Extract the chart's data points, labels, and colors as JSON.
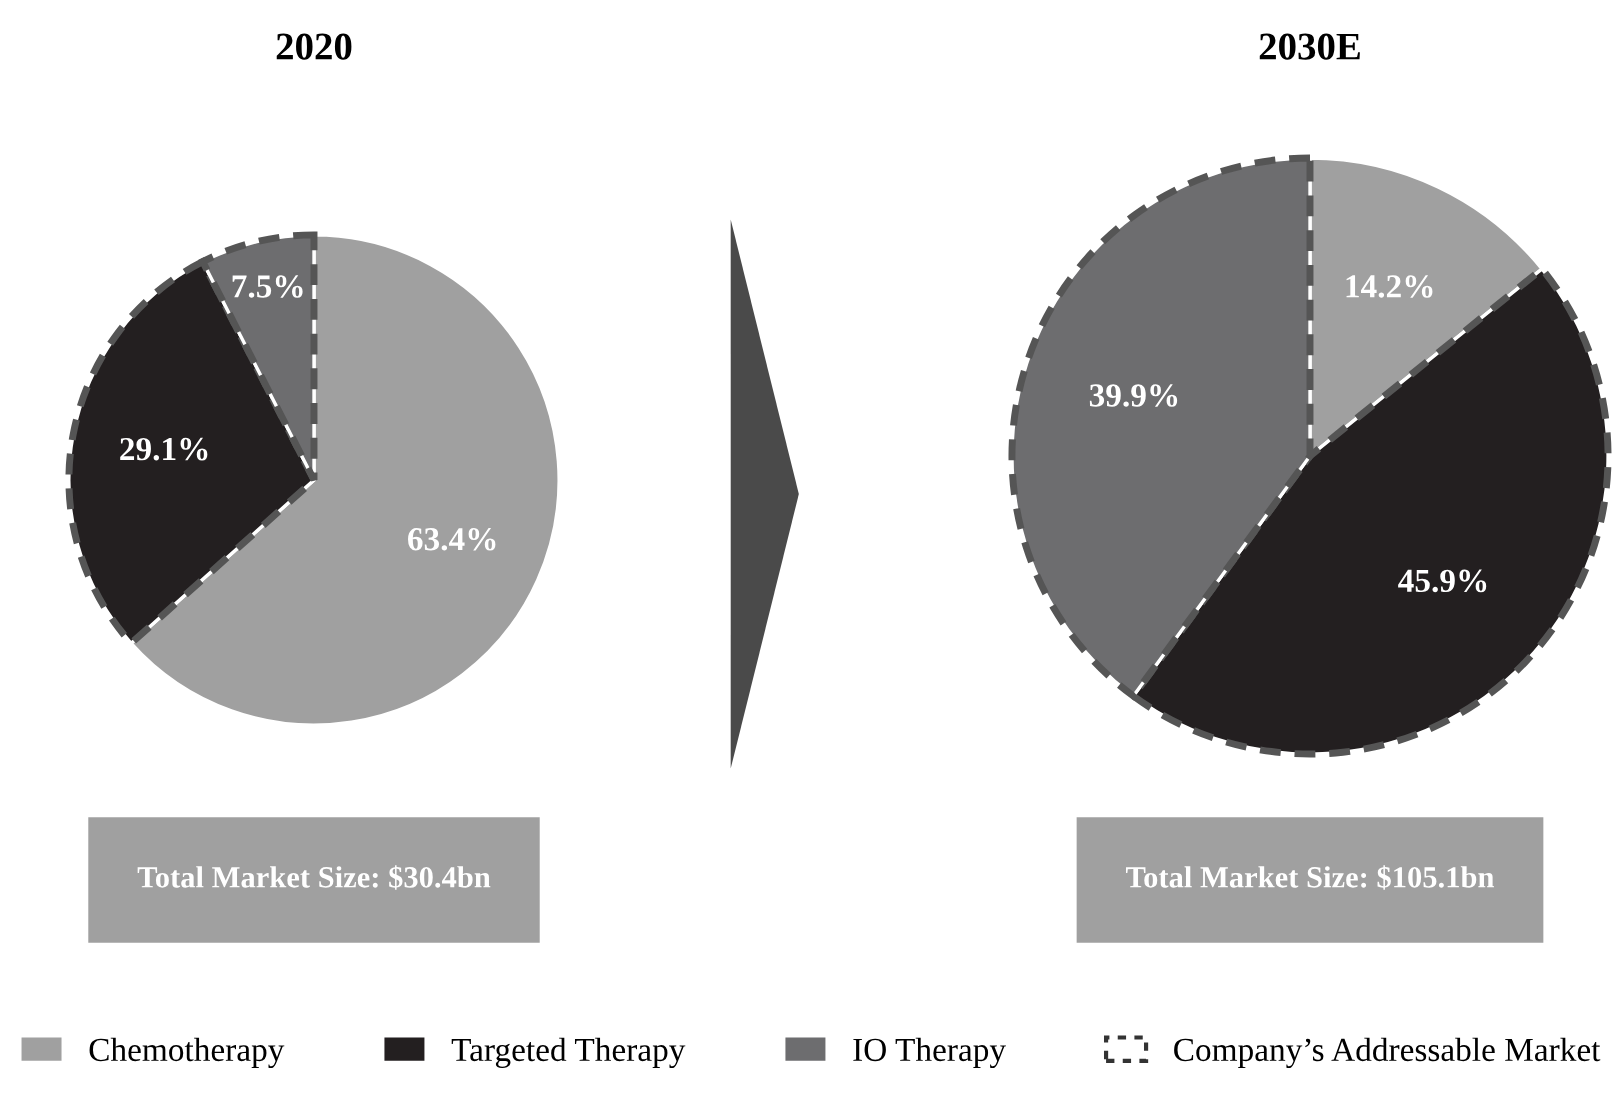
{
  "chart_data": [
    {
      "type": "pie",
      "title": "2020",
      "categories": [
        "Chemotherapy",
        "Targeted Therapy",
        "IO Therapy"
      ],
      "values": [
        63.4,
        29.1,
        7.5
      ],
      "colors": [
        "#a0a0a0",
        "#231f20",
        "#6d6d6f"
      ],
      "value_labels": [
        "63.4%",
        "29.1%",
        "7.5%"
      ],
      "annotations": [
        "Total Market Size: $30.4bn",
        "Company’s Addressable Market"
      ],
      "legend": "bottom"
    },
    {
      "type": "pie",
      "title": "2030E",
      "categories": [
        null,
        null,
        null
      ],
      "values": [
        14.2,
        45.9,
        39.9
      ],
      "colors": [
        "#a0a0a0",
        "#231f20",
        "#6d6d6f"
      ],
      "value_labels": [
        "14.2%",
        "45.9%",
        "39.9%"
      ],
      "annotations": [
        "Total Market Size: $105.1bn"
      ]
    }
  ]
}
